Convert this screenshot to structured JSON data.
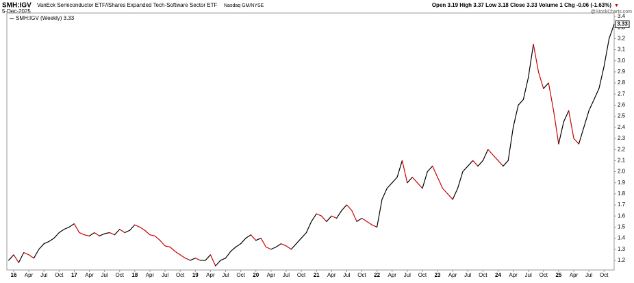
{
  "header": {
    "symbol": "SMH:IGV",
    "name": "VanEck Semiconductor ETF/iShares Expanded Tech-Software Sector ETF",
    "exchange": "Nasdaq GM/NYSE",
    "date": "5-Dec-2025",
    "quote": "Open 3.19  High 3.37  Low 3.18  Close 3.33  Volume 1  Chg -0.06 (-1.63%)",
    "arrow": "▼",
    "brand": "@StockCharts.com"
  },
  "chart_data": {
    "type": "line",
    "legend": "SMH:IGV (Weekly) 3.33",
    "categories": [
      null,
      "16",
      null,
      null,
      "Apr",
      null,
      null,
      "Jul",
      null,
      null,
      "Oct",
      null,
      null,
      "17",
      null,
      null,
      "Apr",
      null,
      null,
      "Jul",
      null,
      null,
      "Oct",
      null,
      null,
      "18",
      null,
      null,
      "Apr",
      null,
      null,
      "Jul",
      null,
      null,
      "Oct",
      null,
      null,
      "19",
      null,
      null,
      "Apr",
      null,
      null,
      "Jul",
      null,
      null,
      "Oct",
      null,
      null,
      "20",
      null,
      null,
      "Apr",
      null,
      null,
      "Jul",
      null,
      null,
      "Oct",
      null,
      null,
      "21",
      null,
      null,
      "Apr",
      null,
      null,
      "Jul",
      null,
      null,
      "Oct",
      null,
      null,
      "22",
      null,
      null,
      "Apr",
      null,
      null,
      "Jul",
      null,
      null,
      "Oct",
      null,
      null,
      "23",
      null,
      null,
      "Apr",
      null,
      null,
      "Jul",
      null,
      null,
      "Oct",
      null,
      null,
      "24",
      null,
      null,
      "Apr",
      null,
      null,
      "Jul",
      null,
      null,
      "Oct",
      null,
      null,
      "25",
      null,
      null,
      "Apr",
      null,
      null,
      "Jul",
      null,
      null,
      "Oct",
      null,
      null
    ],
    "series": [
      {
        "name": "SMH:IGV",
        "color": "#000000",
        "down_color": "#cc0000",
        "values": [
          1.2,
          1.25,
          1.18,
          1.27,
          1.25,
          1.22,
          1.3,
          1.35,
          1.37,
          1.4,
          1.45,
          1.48,
          1.5,
          1.53,
          1.45,
          1.43,
          1.42,
          1.45,
          1.42,
          1.44,
          1.45,
          1.43,
          1.48,
          1.45,
          1.47,
          1.52,
          1.5,
          1.47,
          1.43,
          1.42,
          1.38,
          1.33,
          1.32,
          1.28,
          1.25,
          1.22,
          1.2,
          1.22,
          1.2,
          1.2,
          1.25,
          1.15,
          1.2,
          1.22,
          1.28,
          1.32,
          1.35,
          1.4,
          1.43,
          1.38,
          1.4,
          1.32,
          1.3,
          1.32,
          1.35,
          1.33,
          1.3,
          1.35,
          1.4,
          1.45,
          1.55,
          1.62,
          1.6,
          1.55,
          1.6,
          1.58,
          1.65,
          1.7,
          1.65,
          1.55,
          1.58,
          1.55,
          1.52,
          1.5,
          1.75,
          1.85,
          1.9,
          1.95,
          2.1,
          1.9,
          1.95,
          1.9,
          1.85,
          2.0,
          2.05,
          1.95,
          1.85,
          1.8,
          1.75,
          1.85,
          2.0,
          2.05,
          2.1,
          2.05,
          2.1,
          2.2,
          2.15,
          2.1,
          2.05,
          2.1,
          2.4,
          2.6,
          2.65,
          2.85,
          3.15,
          2.9,
          2.75,
          2.8,
          2.55,
          2.25,
          2.45,
          2.55,
          2.3,
          2.25,
          2.4,
          2.55,
          2.65,
          2.75,
          2.95,
          3.2,
          3.33
        ]
      }
    ],
    "ylim": [
      1.113,
      3.431
    ],
    "yticks": [
      1.2,
      1.3,
      1.4,
      1.5,
      1.6,
      1.7,
      1.8,
      1.9,
      {
        "value": 2,
        "label": "2.0"
      },
      2.1,
      2.2,
      2.3,
      2.4,
      2.5,
      2.6,
      2.7,
      2.8,
      2.9,
      {
        "value": 3,
        "label": "3.0"
      },
      3.1,
      3.2,
      3.3,
      3.4
    ],
    "grid": false
  }
}
